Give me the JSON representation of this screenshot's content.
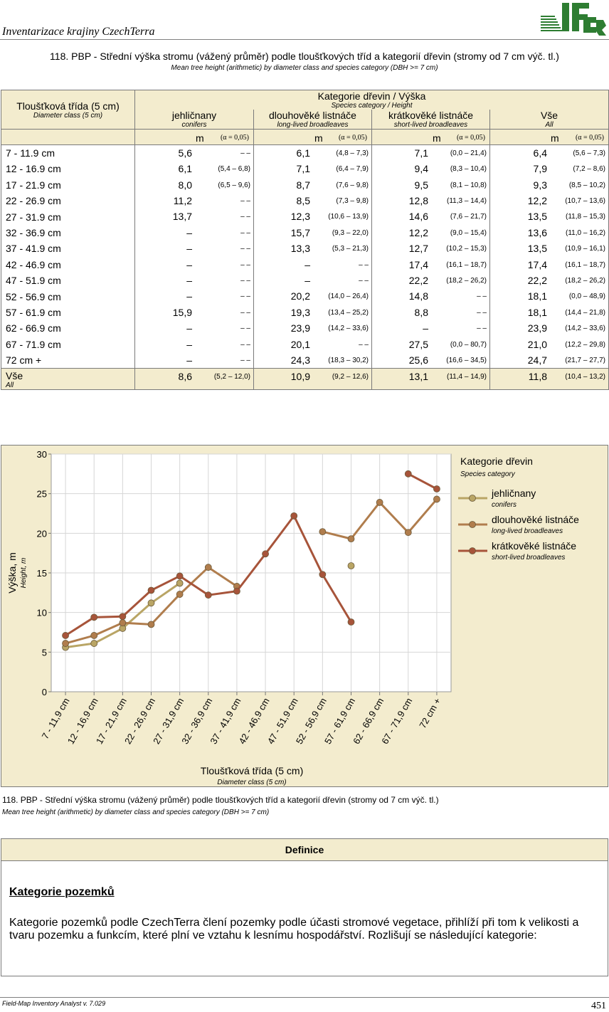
{
  "header": {
    "title": "Inventarizace krajiny CzechTerra",
    "logo_text": "IFER"
  },
  "report": {
    "title": "118. PBP - Střední výška stromu (vážený průměr) podle tloušťkových tříd a kategorií dřevin (stromy od 7 cm výč. tl.)",
    "subtitle": "Mean tree height (arithmetic) by diameter class and species category (DBH >= 7 cm)"
  },
  "table": {
    "rowhead_cz": "Tloušťková třída (5 cm)",
    "rowhead_en": "Diameter class (5 cm)",
    "group_cz": "Kategorie dřevin / Výška",
    "group_en": "Species category / Height",
    "columns": [
      {
        "cz": "jehličnany",
        "en": "conifers"
      },
      {
        "cz": "dlouhověké listnáče",
        "en": "long-lived broadleaves"
      },
      {
        "cz": "krátkověké listnáče",
        "en": "short-lived broadleaves"
      },
      {
        "cz": "Vše",
        "en": "All"
      }
    ],
    "m_label": "m",
    "alpha_label": "(α = 0,05)",
    "rows": [
      {
        "label": "7 - 11.9 cm",
        "cells": [
          [
            "5,6",
            "–      –"
          ],
          [
            "6,1",
            "(4,8  –  7,3)"
          ],
          [
            "7,1",
            "(0,0 – 21,4)"
          ],
          [
            "6,4",
            "(5,6  –  7,3)"
          ]
        ]
      },
      {
        "label": "12 - 16.9 cm",
        "cells": [
          [
            "6,1",
            "(5,4  –  6,8)"
          ],
          [
            "7,1",
            "(6,4  –  7,9)"
          ],
          [
            "9,4",
            "(8,3 – 10,4)"
          ],
          [
            "7,9",
            "(7,2  –  8,6)"
          ]
        ]
      },
      {
        "label": "17 - 21.9 cm",
        "cells": [
          [
            "8,0",
            "(6,5  –  9,6)"
          ],
          [
            "8,7",
            "(7,6  –  9,8)"
          ],
          [
            "9,5",
            "(8,1 – 10,8)"
          ],
          [
            "9,3",
            "(8,5 – 10,2)"
          ]
        ]
      },
      {
        "label": "22 - 26.9 cm",
        "cells": [
          [
            "11,2",
            "–      –"
          ],
          [
            "8,5",
            "(7,3  –  9,8)"
          ],
          [
            "12,8",
            "(11,3 – 14,4)"
          ],
          [
            "12,2",
            "(10,7 – 13,6)"
          ]
        ]
      },
      {
        "label": "27 - 31.9 cm",
        "cells": [
          [
            "13,7",
            "–      –"
          ],
          [
            "12,3",
            "(10,6 – 13,9)"
          ],
          [
            "14,6",
            "(7,6 – 21,7)"
          ],
          [
            "13,5",
            "(11,8 – 15,3)"
          ]
        ]
      },
      {
        "label": "32 - 36.9 cm",
        "cells": [
          [
            "–",
            "–      –"
          ],
          [
            "15,7",
            "(9,3 – 22,0)"
          ],
          [
            "12,2",
            "(9,0 – 15,4)"
          ],
          [
            "13,6",
            "(11,0 – 16,2)"
          ]
        ]
      },
      {
        "label": "37 - 41.9 cm",
        "cells": [
          [
            "–",
            "–      –"
          ],
          [
            "13,3",
            "(5,3 – 21,3)"
          ],
          [
            "12,7",
            "(10,2 – 15,3)"
          ],
          [
            "13,5",
            "(10,9 – 16,1)"
          ]
        ]
      },
      {
        "label": "42 - 46.9 cm",
        "cells": [
          [
            "–",
            "–      –"
          ],
          [
            "–",
            "–      –"
          ],
          [
            "17,4",
            "(16,1 – 18,7)"
          ],
          [
            "17,4",
            "(16,1 – 18,7)"
          ]
        ]
      },
      {
        "label": "47 - 51.9 cm",
        "cells": [
          [
            "–",
            "–      –"
          ],
          [
            "–",
            "–      –"
          ],
          [
            "22,2",
            "(18,2 – 26,2)"
          ],
          [
            "22,2",
            "(18,2 – 26,2)"
          ]
        ]
      },
      {
        "label": "52 - 56.9 cm",
        "cells": [
          [
            "–",
            "–      –"
          ],
          [
            "20,2",
            "(14,0 – 26,4)"
          ],
          [
            "14,8",
            "–      –"
          ],
          [
            "18,1",
            "(0,0 – 48,9)"
          ]
        ]
      },
      {
        "label": "57 - 61.9 cm",
        "cells": [
          [
            "15,9",
            "–      –"
          ],
          [
            "19,3",
            "(13,4 – 25,2)"
          ],
          [
            "8,8",
            "–      –"
          ],
          [
            "18,1",
            "(14,4 – 21,8)"
          ]
        ]
      },
      {
        "label": "62 - 66.9 cm",
        "cells": [
          [
            "–",
            "–      –"
          ],
          [
            "23,9",
            "(14,2 – 33,6)"
          ],
          [
            "–",
            "–      –"
          ],
          [
            "23,9",
            "(14,2 – 33,6)"
          ]
        ]
      },
      {
        "label": "67 - 71.9 cm",
        "cells": [
          [
            "–",
            "–      –"
          ],
          [
            "20,1",
            "–      –"
          ],
          [
            "27,5",
            "(0,0 – 80,7)"
          ],
          [
            "21,0",
            "(12,2 – 29,8)"
          ]
        ]
      },
      {
        "label": "72 cm +",
        "cells": [
          [
            "–",
            "–      –"
          ],
          [
            "24,3",
            "(18,3 – 30,2)"
          ],
          [
            "25,6",
            "(16,6 – 34,5)"
          ],
          [
            "24,7",
            "(21,7 – 27,7)"
          ]
        ]
      }
    ],
    "total": {
      "label_cz": "Vše",
      "label_en": "All",
      "cells": [
        [
          "8,6",
          "(5,2 – 12,0)"
        ],
        [
          "10,9",
          "(9,2 – 12,6)"
        ],
        [
          "13,1",
          "(11,4 – 14,9)"
        ],
        [
          "11,8",
          "(10,4 – 13,2)"
        ]
      ]
    }
  },
  "chart_data": {
    "type": "line",
    "categories": [
      "7 - 11,9 cm",
      "12 - 16,9 cm",
      "17 - 21,9 cm",
      "22 - 26,9 cm",
      "27 - 31,9 cm",
      "32 - 36,9 cm",
      "37 - 41,9 cm",
      "42 - 46,9 cm",
      "47 - 51,9 cm",
      "52 - 56,9 cm",
      "57 - 61,9 cm",
      "62 - 66,9 cm",
      "67 - 71,9 cm",
      "72 cm +"
    ],
    "series": [
      {
        "name": "jehličnany",
        "name_en": "conifers",
        "color": "#b9a565",
        "values": [
          5.6,
          6.1,
          8.0,
          11.2,
          13.7,
          null,
          null,
          null,
          null,
          null,
          15.9,
          null,
          null,
          null
        ]
      },
      {
        "name": "dlouhověké listnáče",
        "name_en": "long-lived broadleaves",
        "color": "#b07d4d",
        "values": [
          6.1,
          7.1,
          8.7,
          8.5,
          12.3,
          15.7,
          13.3,
          null,
          null,
          20.2,
          19.3,
          23.9,
          20.1,
          24.3
        ]
      },
      {
        "name": "krátkověké listnáče",
        "name_en": "short-lived broadleaves",
        "color": "#a7543a",
        "values": [
          7.1,
          9.4,
          9.5,
          12.8,
          14.6,
          12.2,
          12.7,
          17.4,
          22.2,
          14.8,
          8.8,
          null,
          27.5,
          25.6
        ]
      }
    ],
    "ylim": [
      0,
      30
    ],
    "yticks": [
      0,
      5,
      10,
      15,
      20,
      25,
      30
    ],
    "ylabel": "Výška, m",
    "ylabel_en": "Height, m",
    "xlabel": "Tloušťková třída (5 cm)",
    "xlabel_en": "Diameter class (5 cm)",
    "legend_title": "Kategorie dřevin",
    "legend_title_en": "Species category",
    "legend_position": "right",
    "grid": true
  },
  "caption": {
    "title": "118. PBP - Střední výška stromu (vážený průměr) podle tloušťkových tříd a kategorií dřevin (stromy od 7 cm výč. tl.)",
    "subtitle": "Mean tree height (arithmetic) by diameter class and species category (DBH >= 7 cm)"
  },
  "definition": {
    "header": "Definice",
    "heading": "Kategorie pozemků",
    "text": "Kategorie pozemků podle CzechTerra člení pozemky podle účasti stromové vegetace, přihlíží při tom k velikosti a tvaru pozemku a funkcím, které plní ve vztahu k lesnímu hospodářství. Rozlišují se následující kategorie:"
  },
  "footer": {
    "software": "Field-Map Inventory Analyst v. 7.029",
    "page": "451"
  }
}
